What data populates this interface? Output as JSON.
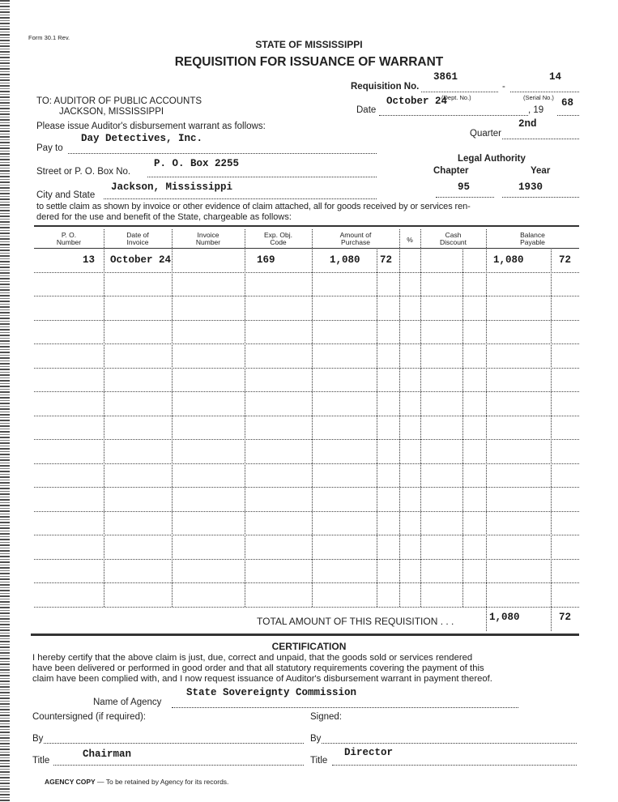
{
  "form_number": "Form 30.1 Rev.",
  "state": "STATE OF MISSISSIPPI",
  "title": "REQUISITION FOR ISSUANCE OF WARRANT",
  "requisition": {
    "label": "Requisition No.",
    "dept_no": "3861",
    "serial_no": "14",
    "dept_caption": "(Dept. No.)",
    "serial_caption": "(Serial No.)"
  },
  "to": {
    "line1": "TO: AUDITOR OF PUBLIC ACCOUNTS",
    "line2": "JACKSON, MISSISSIPPI"
  },
  "date": {
    "label": "Date",
    "value": "October 24",
    "year_prefix": ", 19",
    "year": "68"
  },
  "please_issue": "Please issue Auditor's disbursement warrant as follows:",
  "quarter": {
    "label": "Quarter",
    "value": "2nd"
  },
  "pay_to": {
    "label": "Pay to",
    "value": "Day Detectives, Inc."
  },
  "street": {
    "label": "Street or P. O. Box No.",
    "value": "P. O. Box 2255"
  },
  "city": {
    "label": "City and State",
    "value": "Jackson, Mississippi"
  },
  "legal_authority": {
    "label": "Legal Authority",
    "chapter_label": "Chapter",
    "year_label": "Year",
    "chapter": "95",
    "year": "1930"
  },
  "settle_text_1": "to settle claim as shown by invoice or other evidence of claim attached, all for goods received by or services ren-",
  "settle_text_2": "dered for the use and benefit of the State, chargeable as follows:",
  "table": {
    "headers": [
      [
        "P. O.",
        "Number"
      ],
      [
        "Date of",
        "Invoice"
      ],
      [
        "Invoice",
        "Number"
      ],
      [
        "Exp. Obj.",
        "Code"
      ],
      [
        "Amount of",
        "Purchase"
      ],
      [
        "%",
        ""
      ],
      [
        "Cash",
        "Discount"
      ],
      [
        "Balance",
        "Payable"
      ]
    ],
    "rows": [
      {
        "po": "13",
        "date": "October 24",
        "invoice": "",
        "code": "169",
        "amount": "1,080",
        "amount_cents": "72",
        "pct": "",
        "discount": "",
        "discount_cents": "",
        "balance": "1,080",
        "balance_cents": "72"
      }
    ],
    "total_label": "TOTAL AMOUNT OF THIS REQUISITION . . .",
    "total": "1,080",
    "total_cents": "72"
  },
  "certification": {
    "heading": "CERTIFICATION",
    "line1": "I hereby certify that the above claim is just, due, correct and unpaid, that the goods sold or services rendered",
    "line2": "have been delivered or performed in good order and that all statutory requirements covering the payment of this",
    "line3": "claim have been complied with, and I now request issuance of Auditor's disbursement warrant in payment thereof."
  },
  "agency": {
    "label": "Name of Agency",
    "value": "State Sovereignty Commission"
  },
  "countersigned_label": "Countersigned (if required):",
  "signed_label": "Signed:",
  "by_label": "By",
  "title_label": "Title",
  "left_title": "Chairman",
  "right_title": "Director",
  "footer": {
    "bold": "AGENCY COPY",
    "text": " — To be retained by Agency for its records."
  }
}
